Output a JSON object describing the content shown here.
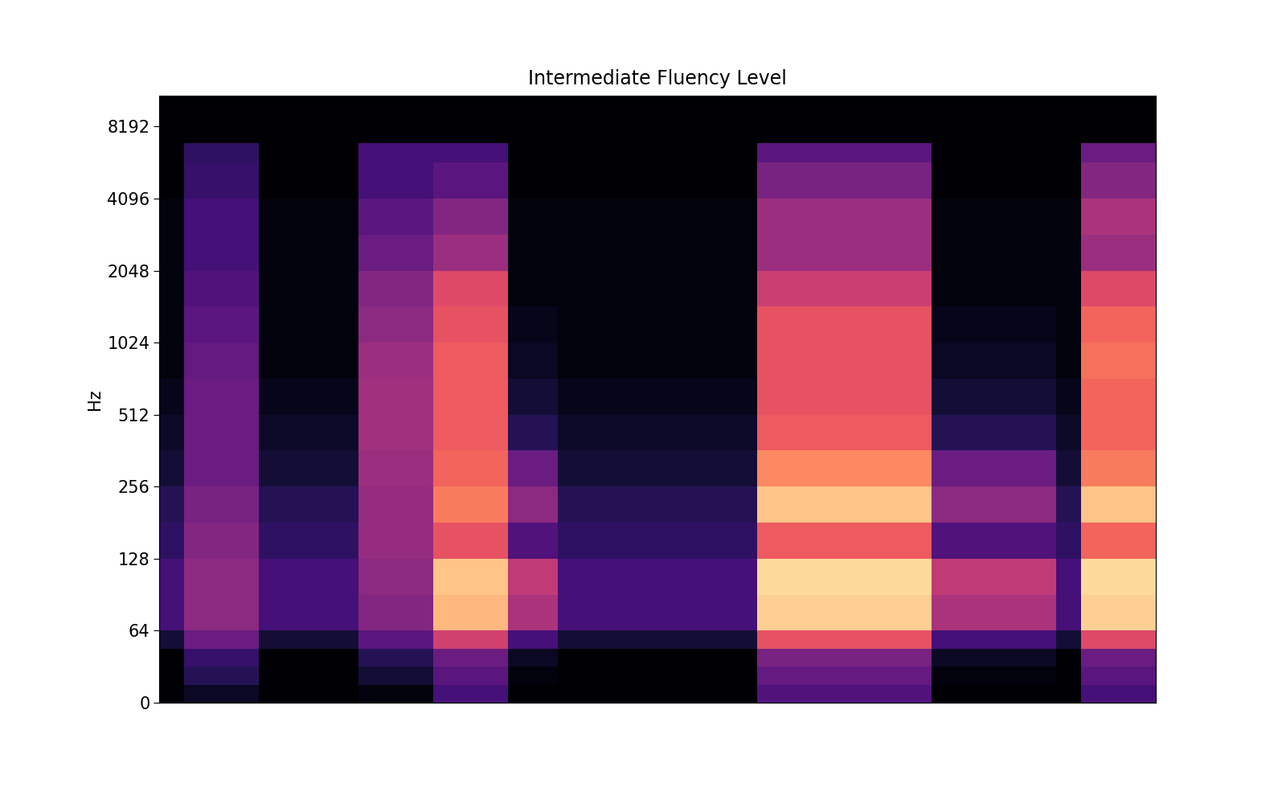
{
  "chart_data": {
    "type": "heatmap",
    "title": "Intermediate Fluency Level",
    "y_label": "Hz",
    "log": "y",
    "tick_labels": "y",
    "xlim": [
      0,
      40
    ],
    "ylim": [
      0,
      11025
    ],
    "yticks": [
      0,
      64,
      128,
      256,
      512,
      1024,
      2048,
      4096,
      8192
    ],
    "color_range": [
      -80,
      0
    ],
    "frequency_edges": [
      0,
      16,
      32,
      48,
      64,
      90,
      128,
      181,
      256,
      362,
      512,
      724,
      1024,
      1448,
      2048,
      2896,
      4096,
      5793,
      7000,
      8192,
      11025
    ],
    "cells": [
      [
        -80,
        -75,
        -75,
        -75,
        -80,
        -80,
        -80,
        -80,
        -78,
        -78,
        -78,
        -62,
        -62,
        -62,
        -80,
        -80,
        -80,
        -80,
        -80,
        -80,
        -80,
        -80,
        -80,
        -80,
        -60,
        -60,
        -60,
        -60,
        -60,
        -60,
        -60,
        -80,
        -80,
        -80,
        -80,
        -80,
        -80,
        -62,
        -62,
        -62
      ],
      [
        -80,
        -68,
        -68,
        -68,
        -80,
        -80,
        -80,
        -80,
        -72,
        -72,
        -72,
        -58,
        -58,
        -58,
        -78,
        -78,
        -80,
        -80,
        -80,
        -80,
        -80,
        -80,
        -80,
        -80,
        -56,
        -56,
        -56,
        -56,
        -56,
        -56,
        -56,
        -78,
        -78,
        -78,
        -78,
        -78,
        -80,
        -58,
        -58,
        -58
      ],
      [
        -80,
        -65,
        -65,
        -65,
        -80,
        -80,
        -80,
        -80,
        -68,
        -68,
        -68,
        -55,
        -55,
        -55,
        -75,
        -75,
        -80,
        -80,
        -80,
        -80,
        -80,
        -80,
        -80,
        -80,
        -52,
        -52,
        -52,
        -52,
        -52,
        -52,
        -52,
        -75,
        -75,
        -75,
        -75,
        -75,
        -80,
        -55,
        -55,
        -55
      ],
      [
        -72,
        -55,
        -55,
        -55,
        -72,
        -72,
        -72,
        -72,
        -58,
        -58,
        -58,
        -35,
        -35,
        -35,
        -62,
        -62,
        -72,
        -72,
        -72,
        -72,
        -72,
        -72,
        -72,
        -72,
        -30,
        -30,
        -30,
        -30,
        -30,
        -30,
        -30,
        -62,
        -62,
        -62,
        -62,
        -62,
        -72,
        -32,
        -32,
        -32
      ],
      [
        -62,
        -48,
        -48,
        -48,
        -62,
        -62,
        -62,
        -62,
        -50,
        -50,
        -50,
        -12,
        -12,
        -12,
        -42,
        -42,
        -62,
        -62,
        -62,
        -62,
        -62,
        -62,
        -62,
        -62,
        -8,
        -8,
        -8,
        -8,
        -8,
        -8,
        -8,
        -42,
        -42,
        -42,
        -42,
        -42,
        -62,
        -8,
        -8,
        -8
      ],
      [
        -62,
        -48,
        -48,
        -48,
        -62,
        -62,
        -62,
        -62,
        -48,
        -48,
        -48,
        -10,
        -10,
        -10,
        -38,
        -38,
        -62,
        -62,
        -62,
        -62,
        -62,
        -62,
        -62,
        -62,
        -6,
        -6,
        -6,
        -6,
        -6,
        -6,
        -6,
        -38,
        -38,
        -38,
        -38,
        -38,
        -62,
        -6,
        -6,
        -6
      ],
      [
        -66,
        -50,
        -50,
        -50,
        -66,
        -66,
        -66,
        -66,
        -46,
        -46,
        -46,
        -30,
        -30,
        -30,
        -60,
        -60,
        -66,
        -66,
        -66,
        -66,
        -66,
        -66,
        -66,
        -66,
        -28,
        -28,
        -28,
        -28,
        -28,
        -28,
        -28,
        -60,
        -60,
        -60,
        -60,
        -60,
        -66,
        -26,
        -26,
        -26
      ],
      [
        -68,
        -52,
        -52,
        -52,
        -68,
        -68,
        -68,
        -68,
        -46,
        -46,
        -46,
        -22,
        -22,
        -22,
        -48,
        -48,
        -68,
        -68,
        -68,
        -68,
        -68,
        -68,
        -68,
        -68,
        -10,
        -10,
        -10,
        -10,
        -10,
        -10,
        -10,
        -48,
        -48,
        -48,
        -48,
        -48,
        -68,
        -10,
        -10,
        -10
      ],
      [
        -72,
        -55,
        -55,
        -55,
        -72,
        -72,
        -72,
        -72,
        -45,
        -45,
        -45,
        -26,
        -26,
        -26,
        -55,
        -55,
        -72,
        -72,
        -72,
        -72,
        -72,
        -72,
        -72,
        -72,
        -20,
        -20,
        -20,
        -20,
        -20,
        -20,
        -20,
        -55,
        -55,
        -55,
        -55,
        -55,
        -72,
        -22,
        -22,
        -22
      ],
      [
        -74,
        -55,
        -55,
        -55,
        -74,
        -74,
        -74,
        -74,
        -44,
        -44,
        -44,
        -28,
        -28,
        -28,
        -68,
        -68,
        -74,
        -74,
        -74,
        -74,
        -74,
        -74,
        -74,
        -74,
        -28,
        -28,
        -28,
        -28,
        -28,
        -28,
        -28,
        -68,
        -68,
        -68,
        -68,
        -68,
        -74,
        -26,
        -26,
        -26
      ],
      [
        -76,
        -55,
        -55,
        -55,
        -76,
        -76,
        -76,
        -76,
        -44,
        -44,
        -44,
        -28,
        -28,
        -28,
        -72,
        -72,
        -76,
        -76,
        -76,
        -76,
        -76,
        -76,
        -76,
        -76,
        -30,
        -30,
        -30,
        -30,
        -30,
        -30,
        -30,
        -72,
        -72,
        -72,
        -72,
        -72,
        -76,
        -26,
        -26,
        -26
      ],
      [
        -78,
        -56,
        -56,
        -56,
        -78,
        -78,
        -78,
        -78,
        -45,
        -45,
        -45,
        -28,
        -28,
        -28,
        -75,
        -75,
        -78,
        -78,
        -78,
        -78,
        -78,
        -78,
        -78,
        -78,
        -30,
        -30,
        -30,
        -30,
        -30,
        -30,
        -30,
        -75,
        -75,
        -75,
        -75,
        -75,
        -78,
        -24,
        -24,
        -24
      ],
      [
        -78,
        -58,
        -58,
        -58,
        -78,
        -78,
        -78,
        -78,
        -48,
        -48,
        -48,
        -30,
        -30,
        -30,
        -76,
        -76,
        -78,
        -78,
        -78,
        -78,
        -78,
        -78,
        -78,
        -78,
        -30,
        -30,
        -30,
        -30,
        -30,
        -30,
        -30,
        -76,
        -76,
        -76,
        -76,
        -76,
        -78,
        -26,
        -26,
        -26
      ],
      [
        -78,
        -60,
        -60,
        -60,
        -78,
        -78,
        -78,
        -78,
        -50,
        -50,
        -50,
        -32,
        -32,
        -32,
        -78,
        -78,
        -78,
        -78,
        -78,
        -78,
        -78,
        -78,
        -78,
        -78,
        -36,
        -36,
        -36,
        -36,
        -36,
        -36,
        -36,
        -78,
        -78,
        -78,
        -78,
        -78,
        -78,
        -32,
        -32,
        -32
      ],
      [
        -78,
        -62,
        -62,
        -62,
        -78,
        -78,
        -78,
        -78,
        -55,
        -55,
        -55,
        -45,
        -45,
        -45,
        -78,
        -78,
        -78,
        -78,
        -78,
        -78,
        -78,
        -78,
        -78,
        -78,
        -45,
        -45,
        -45,
        -45,
        -45,
        -45,
        -45,
        -78,
        -78,
        -78,
        -78,
        -78,
        -78,
        -45,
        -45,
        -45
      ],
      [
        -78,
        -62,
        -62,
        -62,
        -78,
        -78,
        -78,
        -78,
        -58,
        -58,
        -58,
        -50,
        -50,
        -50,
        -78,
        -78,
        -78,
        -78,
        -78,
        -78,
        -78,
        -78,
        -78,
        -78,
        -45,
        -45,
        -45,
        -45,
        -45,
        -45,
        -45,
        -78,
        -78,
        -78,
        -78,
        -78,
        -78,
        -42,
        -42,
        -42
      ],
      [
        -80,
        -65,
        -65,
        -65,
        -80,
        -80,
        -80,
        -80,
        -62,
        -62,
        -62,
        -58,
        -58,
        -58,
        -80,
        -80,
        -80,
        -80,
        -80,
        -80,
        -80,
        -80,
        -80,
        -80,
        -52,
        -52,
        -52,
        -52,
        -52,
        -52,
        -52,
        -80,
        -80,
        -80,
        -80,
        -80,
        -80,
        -50,
        -50,
        -50
      ],
      [
        -80,
        -66,
        -66,
        -66,
        -80,
        -80,
        -80,
        -80,
        -62,
        -62,
        -62,
        -62,
        -62,
        -62,
        -80,
        -80,
        -80,
        -80,
        -80,
        -80,
        -80,
        -80,
        -80,
        -80,
        -58,
        -58,
        -58,
        -58,
        -58,
        -58,
        -58,
        -80,
        -80,
        -80,
        -80,
        -80,
        -80,
        -55,
        -55,
        -55
      ],
      [
        -80,
        -80,
        -80,
        -80,
        -80,
        -80,
        -80,
        -80,
        -80,
        -80,
        -80,
        -80,
        -80,
        -80,
        -80,
        -80,
        -80,
        -80,
        -80,
        -80,
        -80,
        -80,
        -80,
        -80,
        -80,
        -80,
        -80,
        -80,
        -80,
        -80,
        -80,
        -80,
        -80,
        -80,
        -80,
        -80,
        -80,
        -80,
        -80,
        -80
      ],
      [
        -80,
        -80,
        -80,
        -80,
        -80,
        -80,
        -80,
        -80,
        -80,
        -80,
        -80,
        -80,
        -80,
        -80,
        -80,
        -80,
        -80,
        -80,
        -80,
        -80,
        -80,
        -80,
        -80,
        -80,
        -80,
        -80,
        -80,
        -80,
        -80,
        -80,
        -80,
        -80,
        -80,
        -80,
        -80,
        -80,
        -80,
        -80,
        -80,
        -80
      ]
    ]
  }
}
